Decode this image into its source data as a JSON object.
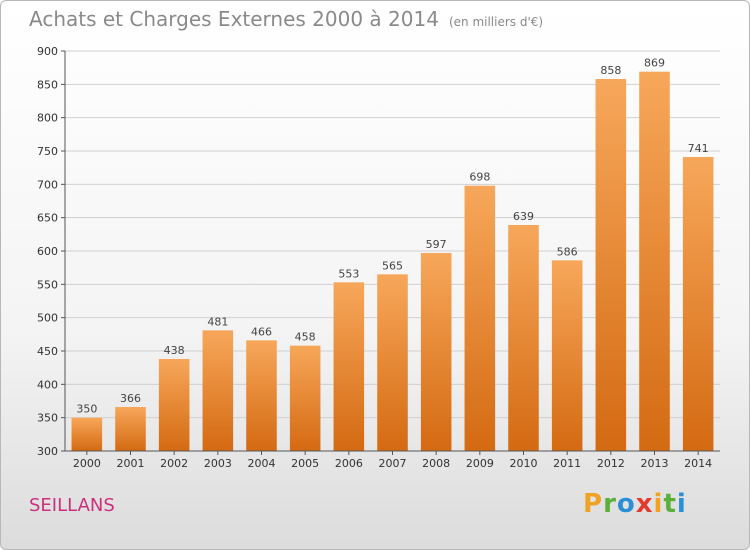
{
  "header": {
    "title": "Achats et Charges Externes 2000 à 2014",
    "subtitle": "(en milliers d'€)"
  },
  "footer": {
    "place": "SEILLANS",
    "logo": "Proxiti"
  },
  "colors": {
    "bar_top": "#f7a75a",
    "bar_bottom": "#d46a12",
    "grid": "#d0d0d0"
  },
  "chart_data": {
    "type": "bar",
    "title": "Achats et Charges Externes 2000 à 2014",
    "subtitle": "(en milliers d'€)",
    "xlabel": "",
    "ylabel": "",
    "categories": [
      "2000",
      "2001",
      "2002",
      "2003",
      "2004",
      "2005",
      "2006",
      "2007",
      "2008",
      "2009",
      "2010",
      "2011",
      "2012",
      "2013",
      "2014"
    ],
    "values": [
      350,
      366,
      438,
      481,
      466,
      458,
      553,
      565,
      597,
      698,
      639,
      586,
      858,
      869,
      741
    ],
    "ylim": [
      300,
      900
    ],
    "yticks": [
      300,
      350,
      400,
      450,
      500,
      550,
      600,
      650,
      700,
      750,
      800,
      850,
      900
    ],
    "grid": true,
    "legend": "none"
  }
}
